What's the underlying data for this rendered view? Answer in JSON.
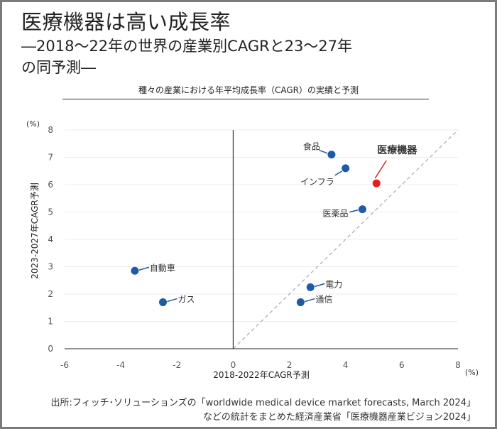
{
  "header": {
    "title": "医療機器は高い成長率",
    "subtitle_line1": "―2018～22年の世界の産業別CAGRと23～27年",
    "subtitle_line2": "の同予測―"
  },
  "chart_data": {
    "type": "scatter",
    "title": "種々の産業における年平均成長率（CAGR）の実績と予測",
    "xlabel": "2018-2022年CAGR予測",
    "ylabel": "2023-2027年CAGR予測",
    "x_unit": "(%)",
    "y_unit": "(%)",
    "xlim": [
      -6,
      8
    ],
    "ylim": [
      0,
      8
    ],
    "xticks": [
      -6,
      -4,
      -2,
      0,
      2,
      4,
      6,
      8
    ],
    "yticks": [
      0,
      1,
      2,
      3,
      4,
      5,
      6,
      7,
      8
    ],
    "grid": "horizontal",
    "reference_line": {
      "type": "y=x",
      "style": "dashed"
    },
    "points": [
      {
        "label": "食品",
        "x": 3.5,
        "y": 7.1,
        "color": "#1f5aa6",
        "highlight": false,
        "label_side": "upper-left"
      },
      {
        "label": "インフラ",
        "x": 4.0,
        "y": 6.6,
        "color": "#1f5aa6",
        "highlight": false,
        "label_side": "lower-left"
      },
      {
        "label": "医療機器",
        "x": 5.1,
        "y": 6.05,
        "color": "#e3201b",
        "highlight": true,
        "label_side": "above"
      },
      {
        "label": "医薬品",
        "x": 4.6,
        "y": 5.1,
        "color": "#1f5aa6",
        "highlight": false,
        "label_side": "left"
      },
      {
        "label": "自動車",
        "x": -3.5,
        "y": 2.85,
        "color": "#1f5aa6",
        "highlight": false,
        "label_side": "right"
      },
      {
        "label": "ガス",
        "x": -2.5,
        "y": 1.7,
        "color": "#1f5aa6",
        "highlight": false,
        "label_side": "right"
      },
      {
        "label": "電力",
        "x": 2.75,
        "y": 2.25,
        "color": "#1f5aa6",
        "highlight": false,
        "label_side": "right"
      },
      {
        "label": "通信",
        "x": 2.4,
        "y": 1.7,
        "color": "#1f5aa6",
        "highlight": false,
        "label_side": "right"
      }
    ]
  },
  "source": {
    "line1": "出所:フィッチ･ソリューションズの「worldwide medical device market forecasts, March 2024」",
    "line2": "などの統計をまとめた経済産業省「医療機器産業ビジョン2024」"
  }
}
